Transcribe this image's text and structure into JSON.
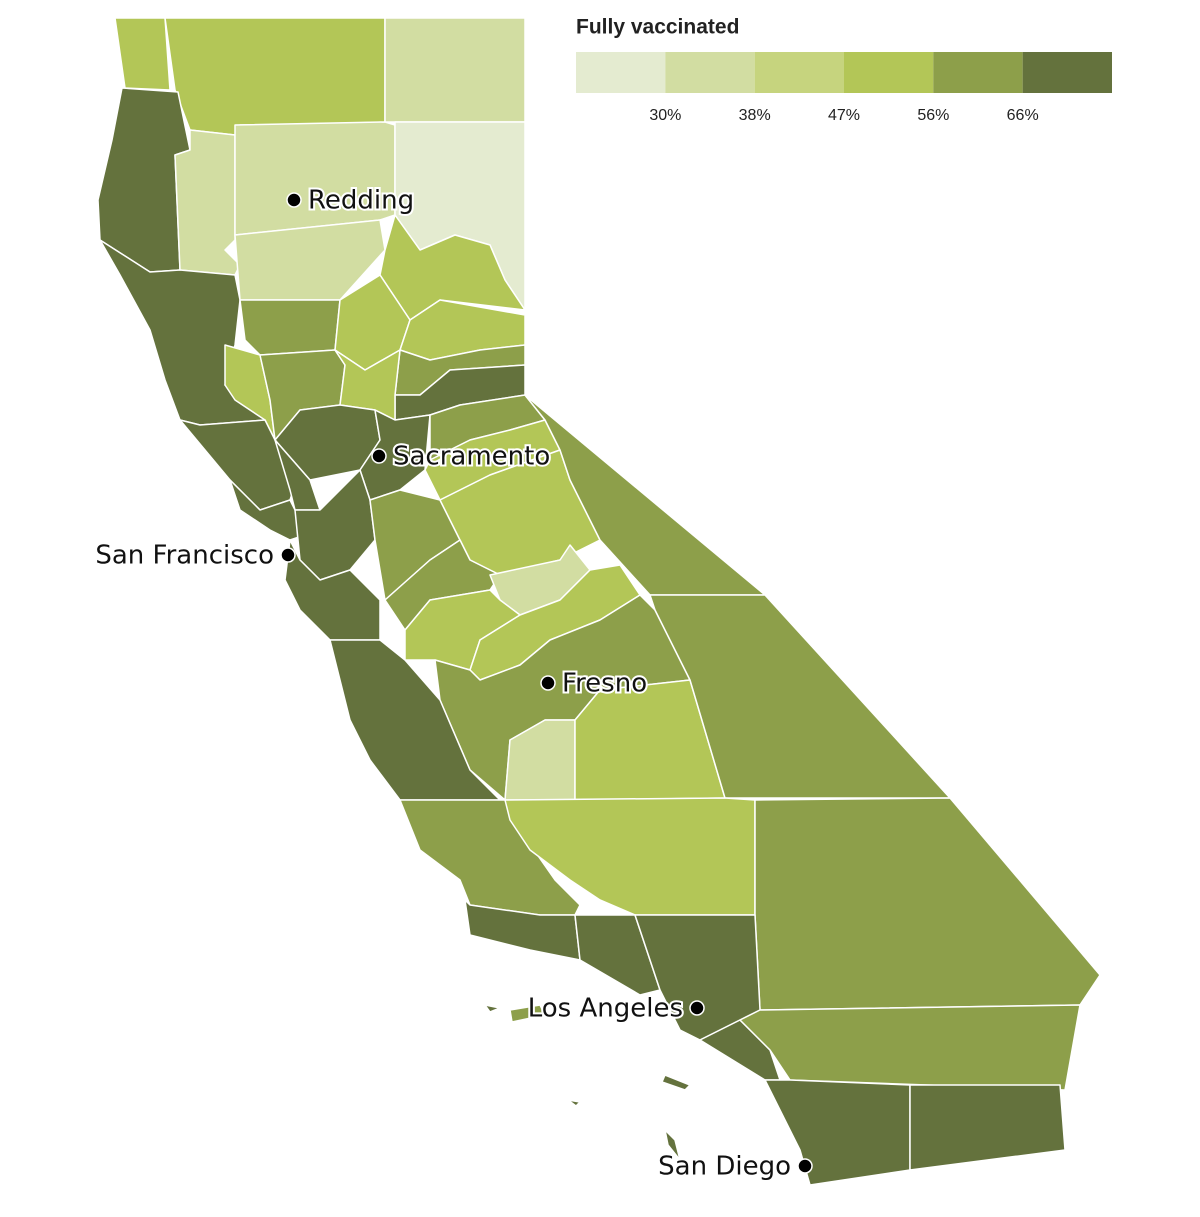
{
  "legend": {
    "title": "Fully vaccinated",
    "colors": [
      "#e4ebd0",
      "#d2dda2",
      "#c6d47e",
      "#b3c657",
      "#8d9f4a",
      "#64723d"
    ],
    "ticks": [
      {
        "value": 30,
        "label": "30%"
      },
      {
        "value": 38,
        "label": "38%"
      },
      {
        "value": 47,
        "label": "47%"
      },
      {
        "value": 56,
        "label": "56%"
      },
      {
        "value": 66,
        "label": "66%"
      }
    ]
  },
  "cities": [
    "Redding",
    "Sacramento",
    "San Francisco",
    "Fresno",
    "Los Angeles",
    "San Diego"
  ]
}
